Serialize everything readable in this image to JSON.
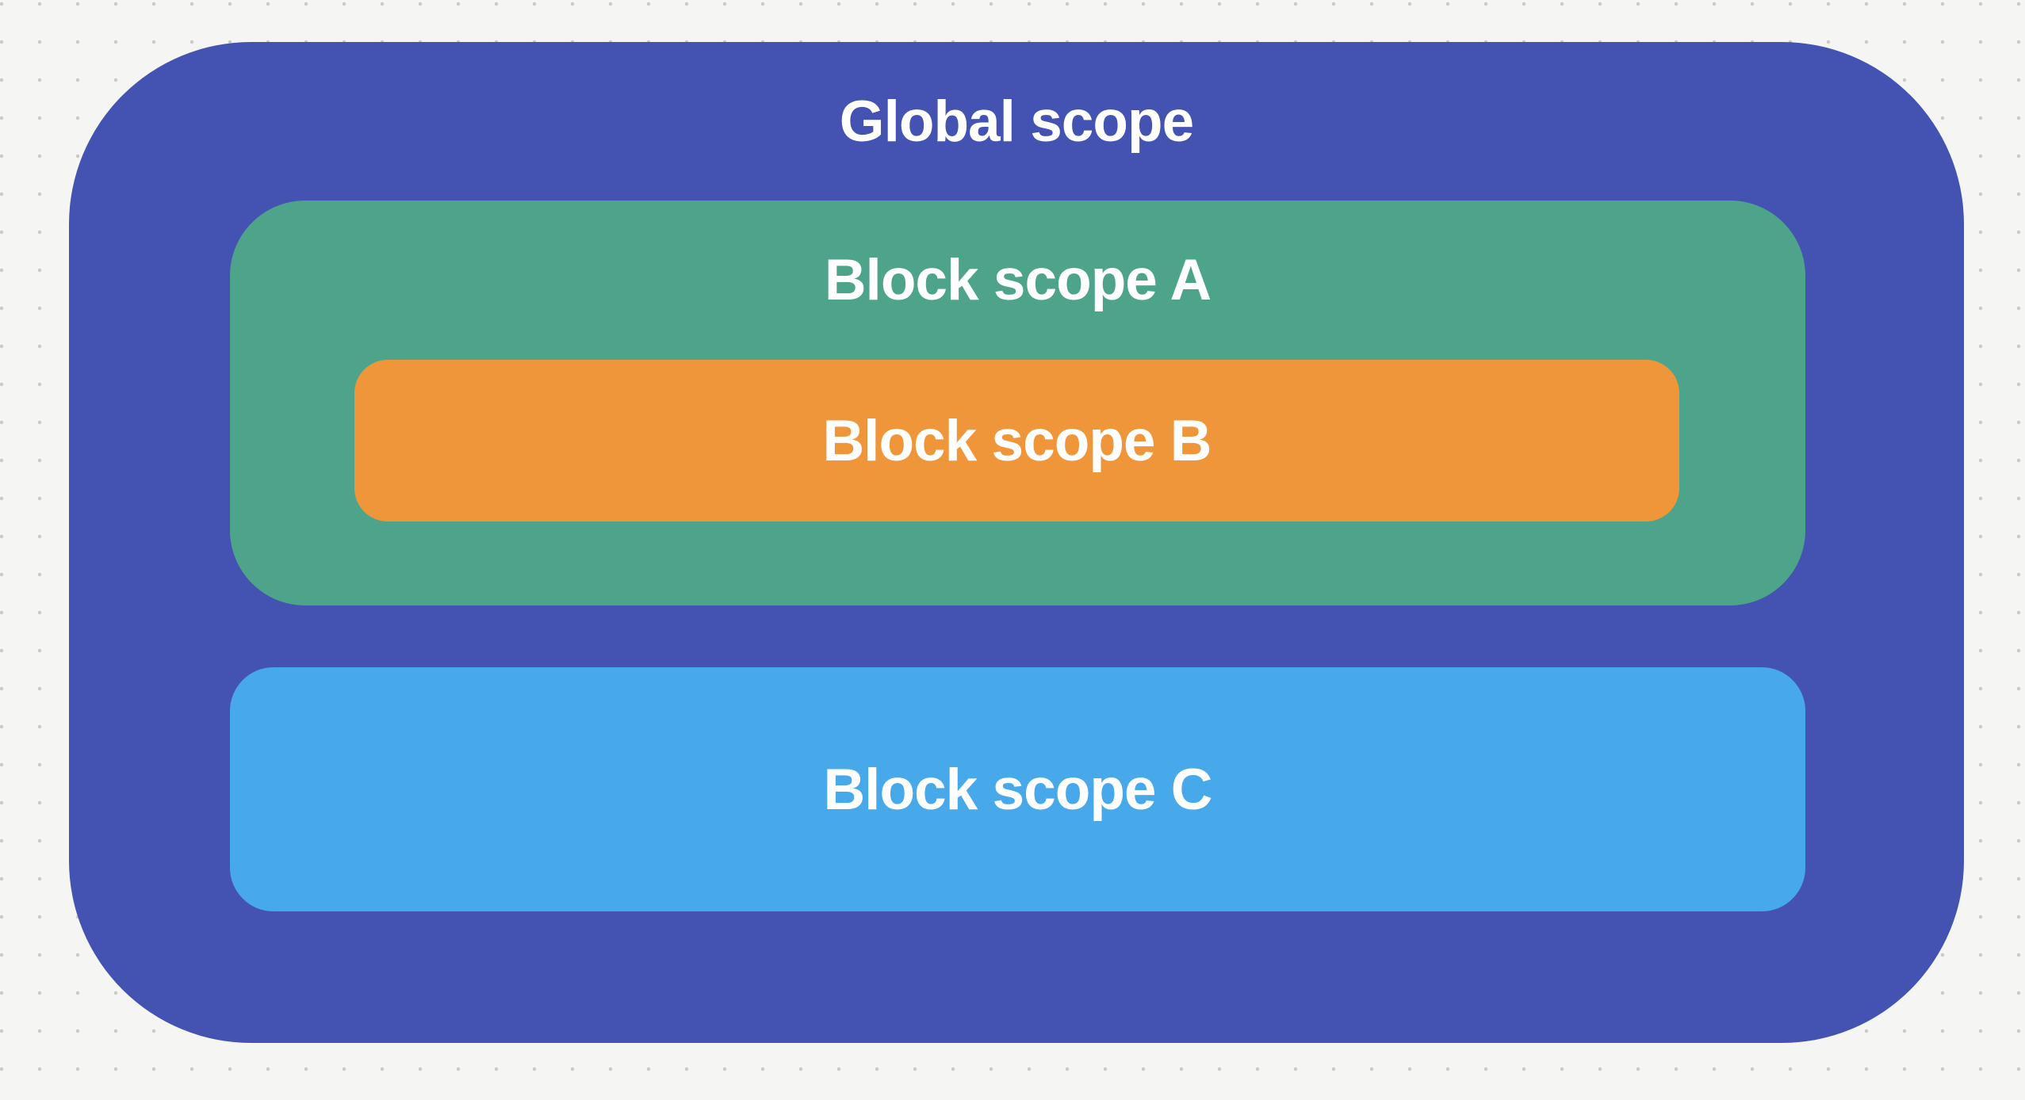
{
  "background": {
    "color": "#f5f5f4",
    "dot_color": "#c8c8c7"
  },
  "diagram": {
    "global_scope": {
      "label": "Global scope",
      "color": "#4453b1",
      "text_color": "#ffffff"
    },
    "block_scope_a": {
      "label": "Block scope A",
      "color": "#4ea48b",
      "text_color": "#ffffff"
    },
    "block_scope_b": {
      "label": "Block scope B",
      "color": "#f0963a",
      "text_color": "#ffffff"
    },
    "block_scope_c": {
      "label": "Block scope C",
      "color": "#47a9e9",
      "text_color": "#ffffff"
    }
  }
}
